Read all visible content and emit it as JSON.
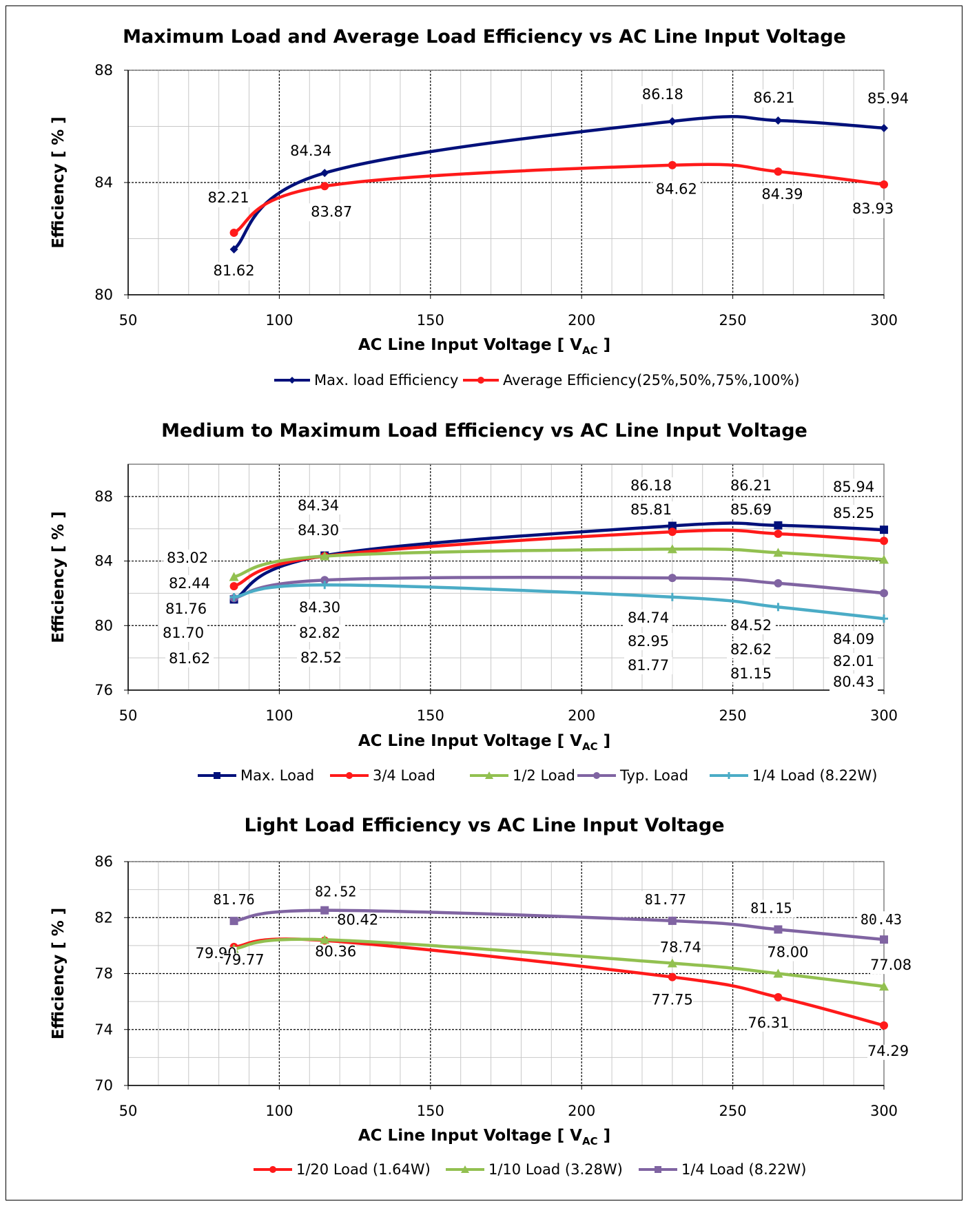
{
  "chart_data": [
    {
      "type": "line",
      "title": "Maximum Load and Average Load Efficiency vs AC Line Input Voltage",
      "xlabel": "AC Line Input Voltage [ V",
      "xlabel_sub": "AC",
      "xlabel_end": " ]",
      "ylabel": "Efficiency [ % ]",
      "xlim": [
        50,
        300
      ],
      "ylim": [
        80,
        88
      ],
      "xticks": [
        50,
        100,
        150,
        200,
        250,
        300
      ],
      "yticks": [
        80,
        84,
        88
      ],
      "grid": true,
      "legend": "bottom",
      "x": [
        85,
        115,
        230,
        265,
        300
      ],
      "series": [
        {
          "name": "Max. load Efficiency",
          "color": "#00107a",
          "marker": "diamond",
          "values": [
            81.62,
            84.34,
            86.18,
            86.21,
            85.94
          ],
          "labels": [
            "81.62",
            "84.34",
            "86.18",
            "86.21",
            "85.94"
          ]
        },
        {
          "name": "Average Efficiency(25%,50%,75%,100%)",
          "color": "#ff1a1a",
          "marker": "circle",
          "values": [
            82.21,
            83.87,
            84.62,
            84.39,
            83.93
          ],
          "labels": [
            "82.21",
            "83.87",
            "84.62",
            "84.39",
            "83.93"
          ]
        }
      ]
    },
    {
      "type": "line",
      "title": "Medium to Maximum Load Efficiency vs AC Line Input Voltage",
      "xlabel": "AC Line Input Voltage [ V",
      "xlabel_sub": "AC",
      "xlabel_end": " ]",
      "ylabel": "Efficiency [ % ]",
      "xlim": [
        50,
        300
      ],
      "ylim": [
        76,
        90
      ],
      "xticks": [
        50,
        100,
        150,
        200,
        250,
        300
      ],
      "yticks": [
        76,
        80,
        84,
        88
      ],
      "grid": true,
      "legend": "bottom",
      "x": [
        85,
        115,
        230,
        265,
        300
      ],
      "series": [
        {
          "name": "Max. Load",
          "color": "#00107a",
          "marker": "square",
          "values": [
            81.62,
            84.34,
            86.18,
            86.21,
            85.94
          ]
        },
        {
          "name": "3/4 Load",
          "color": "#ff1a1a",
          "marker": "circle",
          "values": [
            82.44,
            84.3,
            85.81,
            85.69,
            85.25
          ]
        },
        {
          "name": "1/2 Load",
          "color": "#92c050",
          "marker": "triangle",
          "values": [
            83.02,
            84.3,
            84.74,
            84.52,
            84.09
          ]
        },
        {
          "name": "Typ. Load",
          "color": "#8064a2",
          "marker": "circle",
          "values": [
            81.7,
            82.82,
            82.95,
            82.62,
            82.01
          ]
        },
        {
          "name": "1/4 Load (8.22W)",
          "color": "#4bacc6",
          "marker": "cross",
          "values": [
            81.76,
            82.52,
            81.77,
            81.15,
            80.43
          ]
        }
      ],
      "annotations": [
        "83.02",
        "82.44",
        "81.76",
        "81.70",
        "81.62",
        "84.34",
        "84.30",
        "84.30",
        "82.82",
        "82.52",
        "86.18",
        "85.81",
        "84.74",
        "82.95",
        "81.77",
        "86.21",
        "85.69",
        "84.52",
        "82.62",
        "81.15",
        "85.94",
        "85.25",
        "84.09",
        "82.01",
        "80.43"
      ]
    },
    {
      "type": "line",
      "title": "Light Load Efficiency vs AC Line Input Voltage",
      "xlabel": "AC Line Input Voltage [ V",
      "xlabel_sub": "AC",
      "xlabel_end": " ]",
      "ylabel": "Efficiency [ % ]",
      "xlim": [
        50,
        300
      ],
      "ylim": [
        70,
        86
      ],
      "xticks": [
        50,
        100,
        150,
        200,
        250,
        300
      ],
      "yticks": [
        70,
        74,
        78,
        82,
        86
      ],
      "grid": true,
      "legend": "bottom",
      "x": [
        85,
        115,
        230,
        265,
        300
      ],
      "series": [
        {
          "name": "1/20 Load (1.64W)",
          "color": "#ff1a1a",
          "marker": "circle",
          "values": [
            79.9,
            80.36,
            77.75,
            76.31,
            74.29
          ],
          "labels": [
            "79.90",
            "80.36",
            "77.75",
            "76.31",
            "74.29"
          ]
        },
        {
          "name": "1/10 Load (3.28W)",
          "color": "#92c050",
          "marker": "triangle",
          "values": [
            79.77,
            80.42,
            78.74,
            78.0,
            77.08
          ],
          "labels": [
            "79.77",
            "80.42",
            "78.74",
            "78.00",
            "77.08"
          ]
        },
        {
          "name": "1/4 Load (8.22W)",
          "color": "#8064a2",
          "marker": "square",
          "values": [
            81.76,
            82.52,
            81.77,
            81.15,
            80.43
          ],
          "labels": [
            "81.76",
            "82.52",
            "81.77",
            "81.15",
            "80.43"
          ]
        }
      ]
    }
  ]
}
